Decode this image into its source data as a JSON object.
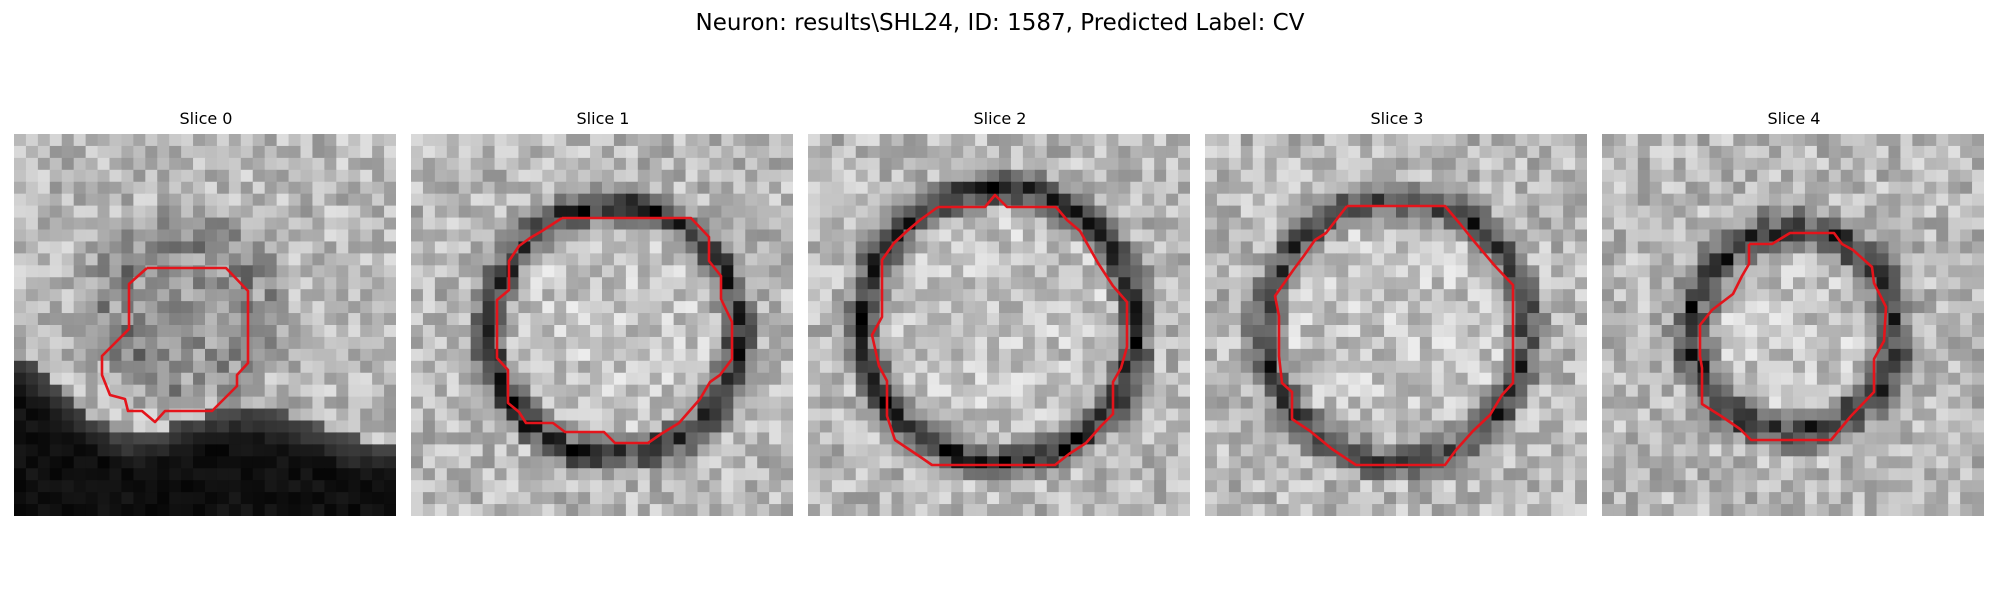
{
  "figure": {
    "title": "Neuron: results\\SHL24, ID: 1587, Predicted Label: CV",
    "contour_color": "#ff0000",
    "colormap": "gray"
  },
  "panels": [
    {
      "title": "Slice 0",
      "shading": "dark-bottom",
      "ring": "faint"
    },
    {
      "title": "Slice 1",
      "shading": "uniform",
      "ring": "dark"
    },
    {
      "title": "Slice 2",
      "shading": "uniform",
      "ring": "dark"
    },
    {
      "title": "Slice 3",
      "shading": "uniform",
      "ring": "dark"
    },
    {
      "title": "Slice 4",
      "shading": "uniform",
      "ring": "dark"
    }
  ]
}
